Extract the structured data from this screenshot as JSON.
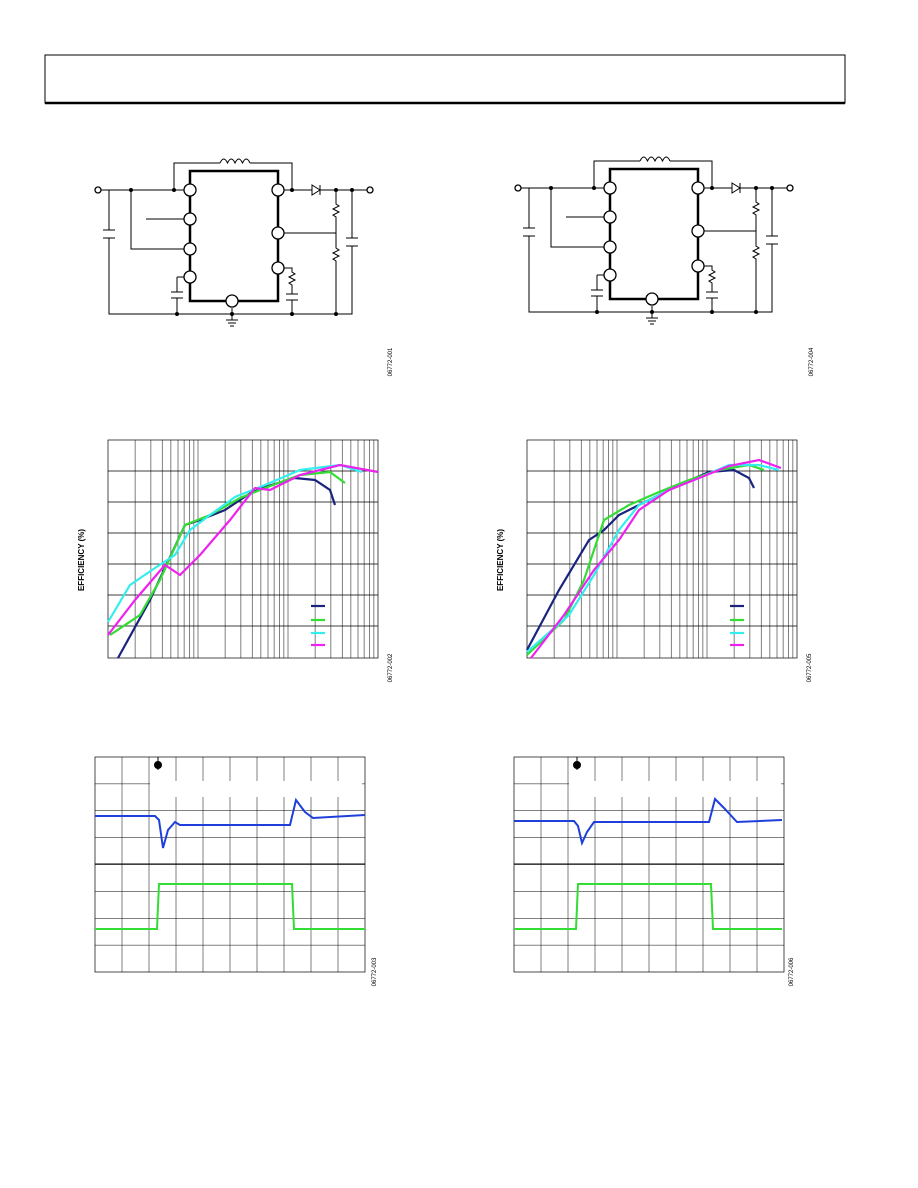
{
  "figure_ids": [
    "06772-001",
    "06772-002",
    "06772-003",
    "06772-004",
    "06772-005",
    "06772-006"
  ],
  "efficiency_axis_labels": [
    "EFFICIENCY (%)",
    "EFFICIENCY (%)"
  ]
}
